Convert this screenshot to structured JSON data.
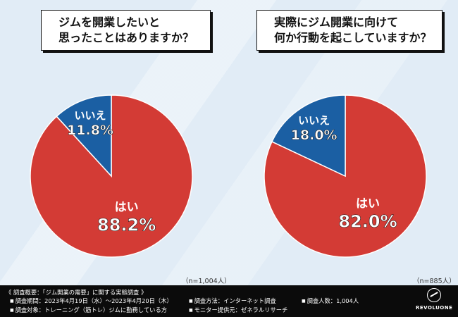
{
  "questions": {
    "left": [
      "ジムを開業したいと",
      "思ったことはありますか？"
    ],
    "right": [
      "実際にジム開業に向けて",
      "何か行動を起こしていますか？"
    ]
  },
  "chart_data": [
    {
      "type": "pie",
      "title": "ジムを開業したいと思ったことはありますか？",
      "labels": [
        "はい",
        "いいえ"
      ],
      "values": [
        88.2,
        11.8
      ],
      "value_labels": [
        "88.2%",
        "11.8%"
      ],
      "colors": [
        "#d33b35",
        "#1b5fa3"
      ],
      "sample_note": "（n=1,004人）"
    },
    {
      "type": "pie",
      "title": "実際にジム開業に向けて何か行動を起こしていますか？",
      "labels": [
        "はい",
        "いいえ"
      ],
      "values": [
        82.0,
        18.0
      ],
      "value_labels": [
        "82.0%",
        "18.0%"
      ],
      "colors": [
        "#d33b35",
        "#1b5fa3"
      ],
      "sample_note": "（n=885人）"
    }
  ],
  "footer": {
    "survey_title": "《 調査概要：「ジム開業の需要」に関する実態調査 》",
    "period": "調査期間：2023年4月19日（水）〜2023年4月20日（木）",
    "target": "調査対象：トレーニング（筋トレ）ジムに勤務している方",
    "method": "調査方法：インターネット調査",
    "provider": "モニター提供元：ゼネラルリサーチ",
    "count": "調査人数：1,004人",
    "brand": "REVOLUONE"
  }
}
